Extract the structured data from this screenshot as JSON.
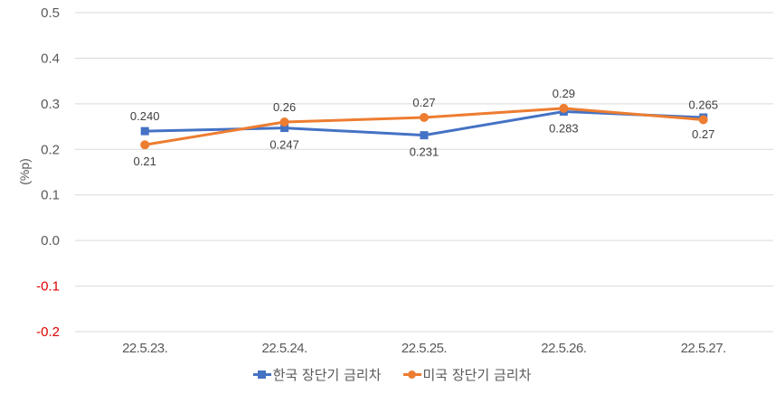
{
  "chart_data": {
    "type": "line",
    "title": "",
    "xlabel": "",
    "ylabel": "(%p)",
    "ylim": [
      -0.2,
      0.5
    ],
    "yticks": [
      "0.5",
      "0.4",
      "0.3",
      "0.2",
      "0.1",
      "0.0",
      "-0.1",
      "-0.2"
    ],
    "grid": true,
    "legend_position": "bottom",
    "categories": [
      "22.5.23.",
      "22.5.24.",
      "22.5.25.",
      "22.5.26.",
      "22.5.27."
    ],
    "series": [
      {
        "name": "한국 장단기 금리차",
        "color": "#4472C4",
        "marker": "square",
        "values": [
          0.24,
          0.247,
          0.231,
          0.283,
          0.27
        ],
        "labels": [
          "0.240",
          "0.247",
          "0.231",
          "0.283",
          "0.27"
        ]
      },
      {
        "name": "미국 장단기 금리차",
        "color": "#ED7D31",
        "marker": "circle",
        "values": [
          0.21,
          0.26,
          0.27,
          0.29,
          0.265
        ],
        "labels": [
          "0.21",
          "0.26",
          "0.27",
          "0.29",
          "0.265"
        ]
      }
    ]
  },
  "legend": {
    "korea": "한국 장단기 금리차",
    "us": "미국 장단기 금리차"
  }
}
